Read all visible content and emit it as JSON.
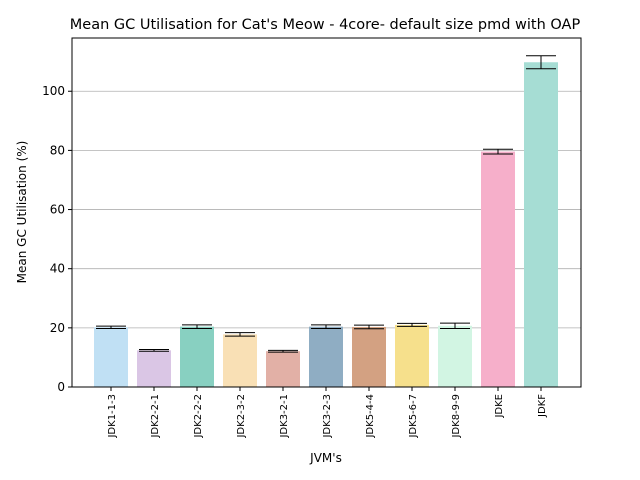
{
  "chart_data": {
    "type": "bar",
    "title": "Mean GC Utilisation for Cat's Meow - 4core- default size pmd with OAP",
    "xlabel": "JVM's",
    "ylabel": "Mean GC Utilisation (%)",
    "ylim": [
      0,
      118
    ],
    "yticks": [
      0,
      20,
      40,
      60,
      80,
      100
    ],
    "ytick_labels": [
      "0",
      "20",
      "40",
      "60",
      "80",
      "100"
    ],
    "grid": "horizontal",
    "categories": [
      "JDK1-1-3",
      "JDK2-2-1",
      "JDK2-2-2",
      "JDK2-3-2",
      "JDK3-2-1",
      "JDK3-2-3",
      "JDK5-4-4",
      "JDK5-6-7",
      "JDK8-9-9",
      "JDKE",
      "JDKF"
    ],
    "values": [
      20.2,
      12.4,
      20.4,
      17.8,
      12.1,
      20.4,
      20.3,
      21.0,
      20.7,
      79.6,
      109.8
    ],
    "errors": [
      0.4,
      0.3,
      0.6,
      0.6,
      0.3,
      0.6,
      0.6,
      0.5,
      0.9,
      0.8,
      2.2
    ],
    "colors": [
      "#c0e0f4",
      "#dac6e5",
      "#88d0c1",
      "#f9e0b5",
      "#e2b0a6",
      "#8fadc3",
      "#d3a182",
      "#f6e08c",
      "#d2f5e3",
      "#f6afca",
      "#a6ddd4"
    ]
  }
}
